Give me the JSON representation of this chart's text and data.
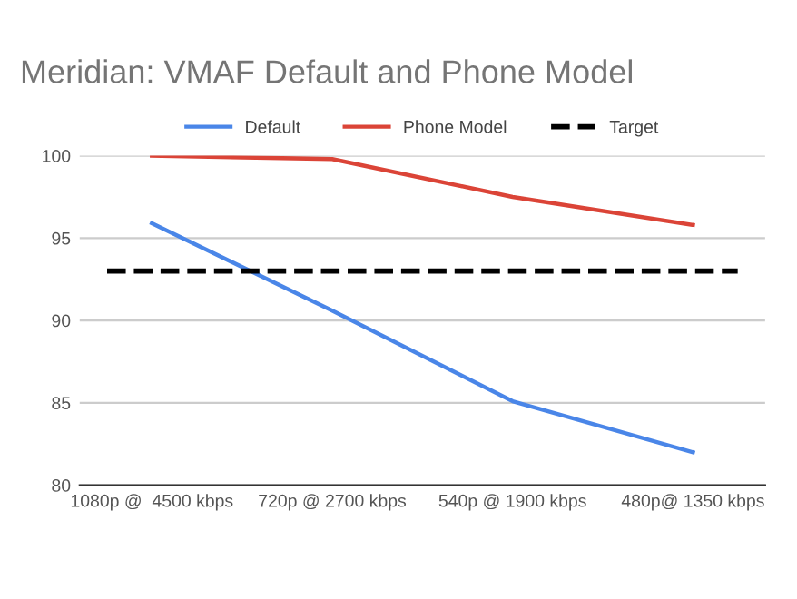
{
  "chart_data": {
    "type": "line",
    "title": "Meridian: VMAF Default and Phone Model",
    "categories": [
      "1080p @  4500 kbps",
      "720p @ 2700 kbps",
      "540p @ 1900 kbps",
      "480p@ 1350 kbps"
    ],
    "series": [
      {
        "name": "Default",
        "color": "#4a86e8",
        "values": [
          95.9,
          90.6,
          85.1,
          82.0
        ]
      },
      {
        "name": "Phone Model",
        "color": "#db4437",
        "values": [
          100,
          99.8,
          97.5,
          95.8
        ]
      }
    ],
    "ref_lines": [
      {
        "axis": "y",
        "value": 93,
        "label": "Target",
        "color": "#000000",
        "line_style": "dashed"
      }
    ],
    "ylim": [
      80,
      100
    ],
    "yticks": [
      80,
      85,
      90,
      95,
      100
    ],
    "grid": "y",
    "legend": "top",
    "marker": "none",
    "line_style": "solid"
  }
}
